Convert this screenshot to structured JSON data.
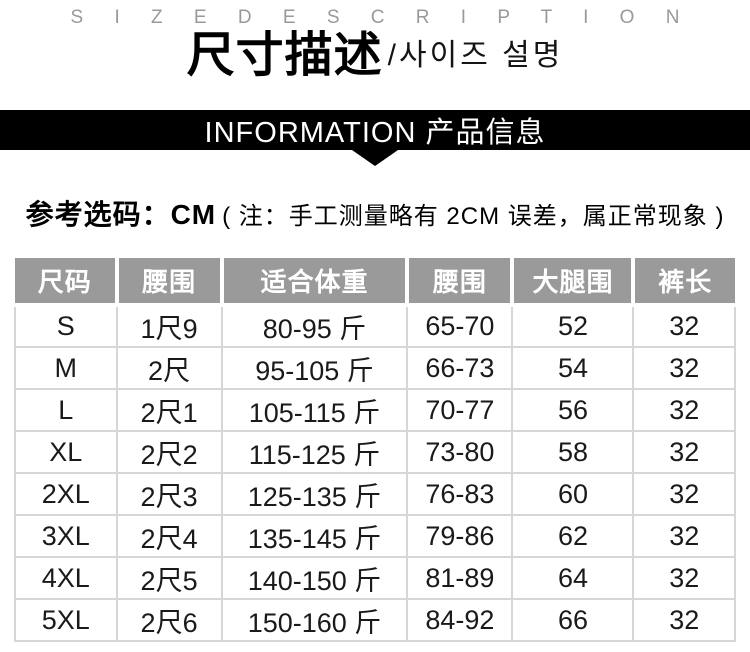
{
  "heading": {
    "size_description_en": "S I Z E   D E S C R I P T I O N",
    "title_cn": "尺寸描述",
    "title_kr": "/사이즈 설명"
  },
  "banner": {
    "label": "INFORMATION 产品信息"
  },
  "note": {
    "prefix": "参考选码：CM",
    "detail": "( 注：手工测量略有 2CM 误差，属正常现象 )"
  },
  "table": {
    "columns": [
      "尺码",
      "腰围",
      "适合体重",
      "腰围",
      "大腿围",
      "裤长"
    ],
    "column_widths_pct": [
      14.1,
      14.6,
      25.8,
      14.6,
      16.8,
      14.1
    ],
    "rows": [
      [
        "S",
        "1尺9",
        "80-95 斤",
        "65-70",
        "52",
        "32"
      ],
      [
        "M",
        "2尺",
        "95-105 斤",
        "66-73",
        "54",
        "32"
      ],
      [
        "L",
        "2尺1",
        "105-115 斤",
        "70-77",
        "56",
        "32"
      ],
      [
        "XL",
        "2尺2",
        "115-125 斤",
        "73-80",
        "58",
        "32"
      ],
      [
        "2XL",
        "2尺3",
        "125-135 斤",
        "76-83",
        "60",
        "32"
      ],
      [
        "3XL",
        "2尺4",
        "135-145 斤",
        "79-86",
        "62",
        "32"
      ],
      [
        "4XL",
        "2尺5",
        "140-150 斤",
        "81-89",
        "64",
        "32"
      ],
      [
        "5XL",
        "2尺6",
        "150-160 斤",
        "84-92",
        "66",
        "32"
      ]
    ]
  },
  "colors": {
    "table_header_bg": "#9a9a9a",
    "banner_bg": "#000000",
    "muted_heading_text": "#999999",
    "grid_line": "#d6d6d6"
  }
}
